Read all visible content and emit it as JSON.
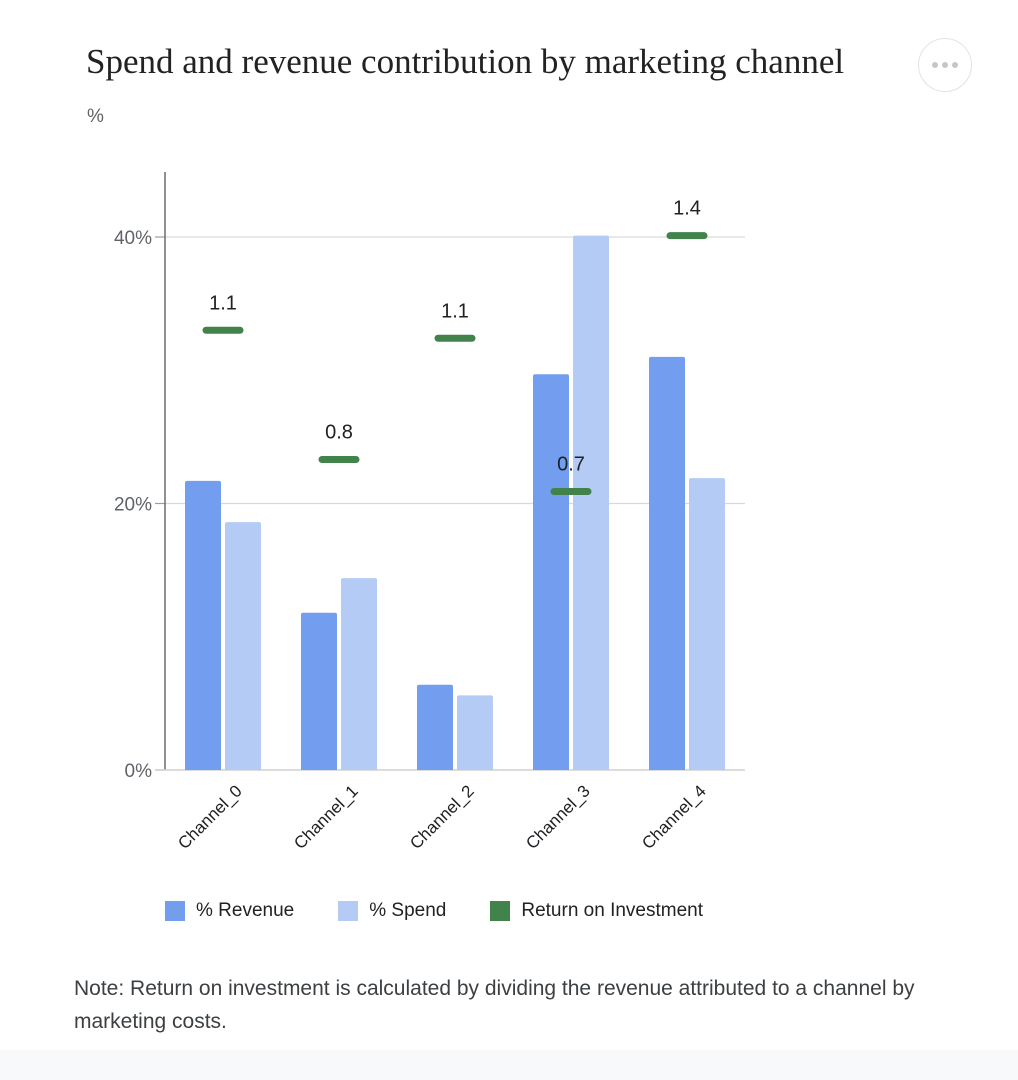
{
  "header": {
    "title": "Spend and revenue contribution by marketing channel",
    "subtitle": "%"
  },
  "menu": {
    "icon": "more-horizontal-icon"
  },
  "chart_data": {
    "type": "bar",
    "categories": [
      "Channel_0",
      "Channel_1",
      "Channel_2",
      "Channel_3",
      "Channel_4"
    ],
    "series": [
      {
        "name": "% Revenue",
        "values": [
          21.7,
          11.8,
          6.4,
          29.7,
          31.0
        ],
        "color": "#739dee"
      },
      {
        "name": "% Spend",
        "values": [
          18.6,
          14.4,
          5.6,
          40.1,
          21.9
        ],
        "color": "#b3cbf5"
      }
    ],
    "roi": {
      "name": "Return on Investment",
      "values": [
        1.1,
        0.8,
        1.1,
        0.7,
        1.4
      ],
      "labels": [
        "1.1",
        "0.8",
        "1.1",
        "0.7",
        "1.4"
      ],
      "marker_y": [
        33.0,
        23.3,
        32.4,
        20.9,
        40.1
      ],
      "color": "#41834b"
    },
    "y_ticks": [
      {
        "value": 0,
        "label": "0%"
      },
      {
        "value": 20,
        "label": "20%"
      },
      {
        "value": 40,
        "label": "40%"
      }
    ],
    "ylim": [
      0,
      45
    ],
    "grid": true,
    "legend_position": "bottom"
  },
  "note": "Note: Return on investment is calculated by dividing the revenue attributed to a channel by marketing costs."
}
